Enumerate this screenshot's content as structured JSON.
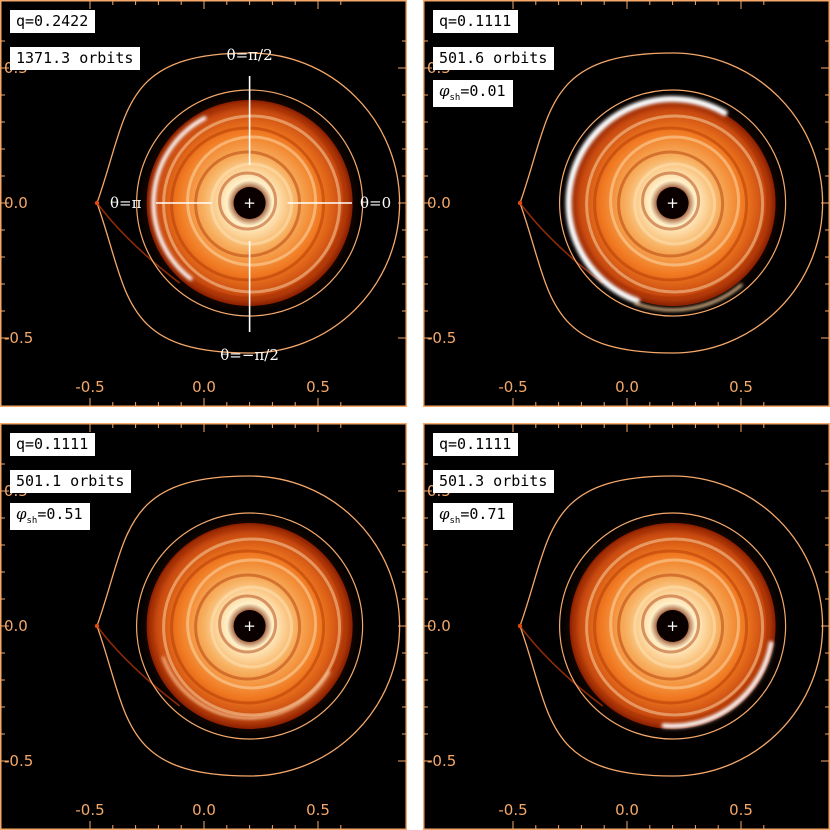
{
  "figure": {
    "colors": {
      "background": "#000000",
      "frame": "#ffffff",
      "axes": "#f5a86a",
      "disc_core": "#fff0c8",
      "disc_mid": "#f07820",
      "disc_edge": "#8a1e00",
      "bright_streak": "#ffffff",
      "text_on_plot": "#ffffff",
      "label_box_bg": "#ffffff",
      "label_box_text": "#000000"
    },
    "axes": {
      "x_ticks": [
        "-0.5",
        "0.0",
        "0.5"
      ],
      "y_ticks": [
        "-0.5",
        "0.0",
        "0.5"
      ]
    },
    "panels": [
      {
        "q_label": "q=0.2422",
        "orbits_label": "1371.3 orbits",
        "phase_symbol": "",
        "phase_subscript": "",
        "phase_value": "",
        "star_marker": "+",
        "streak": "left-arc",
        "angle_labels": {
          "top": "θ=π/2",
          "left": "θ=π",
          "right": "θ=0",
          "bottom": "θ=−π/2"
        }
      },
      {
        "q_label": "q=0.1111",
        "orbits_label": "501.6 orbits",
        "phase_symbol": "φ",
        "phase_subscript": "sh",
        "phase_value": "=0.01",
        "star_marker": "+",
        "streak": "left-crescent"
      },
      {
        "q_label": "q=0.1111",
        "orbits_label": "501.1 orbits",
        "phase_symbol": "φ",
        "phase_subscript": "sh",
        "phase_value": "=0.51",
        "star_marker": "+",
        "streak": "faint-rings"
      },
      {
        "q_label": "q=0.1111",
        "orbits_label": "501.3 orbits",
        "phase_symbol": "φ",
        "phase_subscript": "sh",
        "phase_value": "=0.71",
        "star_marker": "+",
        "streak": "lower-right"
      }
    ]
  }
}
